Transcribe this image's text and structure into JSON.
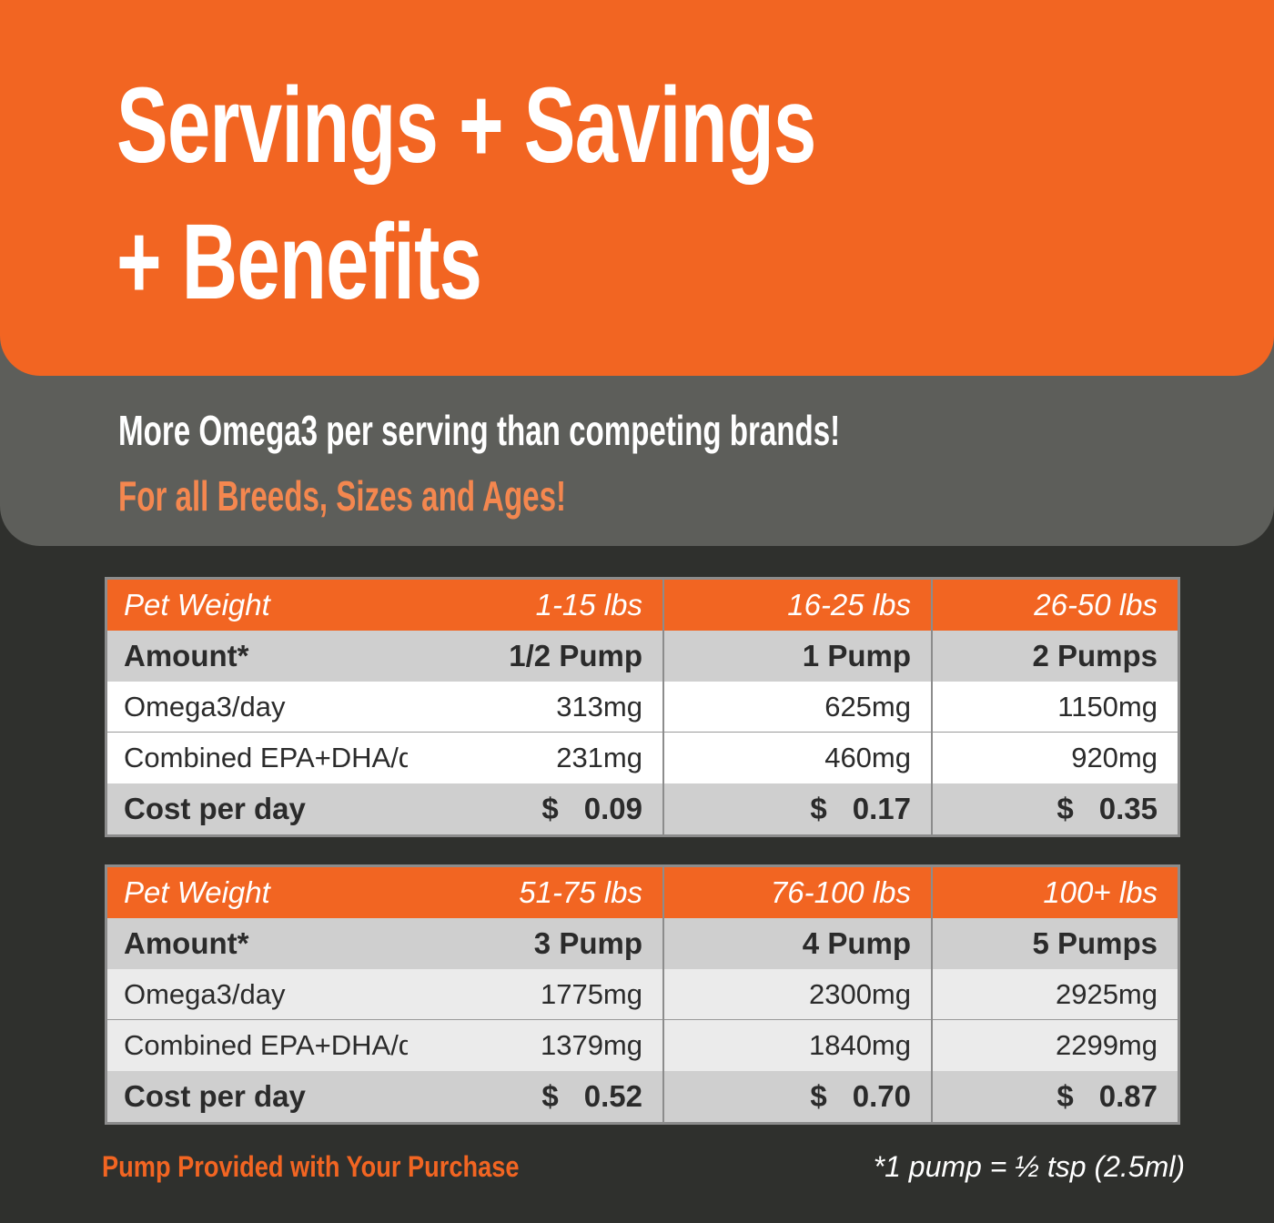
{
  "header": {
    "title_lines": [
      "Servings + Savings",
      "+ Benefits"
    ]
  },
  "subtitle": {
    "line1": "More Omega3 per serving than competing brands!",
    "line2": "For all Breeds, Sizes and Ages!"
  },
  "tables": [
    {
      "header": [
        "Pet Weight",
        "1-15 lbs",
        "16-25 lbs",
        "26-50 lbs"
      ],
      "rows": [
        [
          "Amount*",
          "1/2 Pump",
          "1 Pump",
          "2 Pumps"
        ],
        [
          "Omega3/day",
          "313mg",
          "625mg",
          "1150mg"
        ],
        [
          "Combined EPA+DHA/day",
          "231mg",
          "460mg",
          "920mg"
        ],
        [
          "Cost per day",
          {
            "currency": "$",
            "amount": "0.09"
          },
          {
            "currency": "$",
            "amount": "0.17"
          },
          {
            "currency": "$",
            "amount": "0.35"
          }
        ]
      ]
    },
    {
      "header": [
        "Pet Weight",
        "51-75 lbs",
        "76-100 lbs",
        "100+ lbs"
      ],
      "rows": [
        [
          "Amount*",
          "3 Pump",
          "4 Pump",
          "5 Pumps"
        ],
        [
          "Omega3/day",
          "1775mg",
          "2300mg",
          "2925mg"
        ],
        [
          "Combined EPA+DHA/day",
          "1379mg",
          "1840mg",
          "2299mg"
        ],
        [
          "Cost per day",
          {
            "currency": "$",
            "amount": "0.52"
          },
          {
            "currency": "$",
            "amount": "0.70"
          },
          {
            "currency": "$",
            "amount": "0.87"
          }
        ]
      ]
    }
  ],
  "footer": {
    "left": "Pump Provided with Your Purchase",
    "right": "*1 pump = ½ tsp (2.5ml)"
  }
}
